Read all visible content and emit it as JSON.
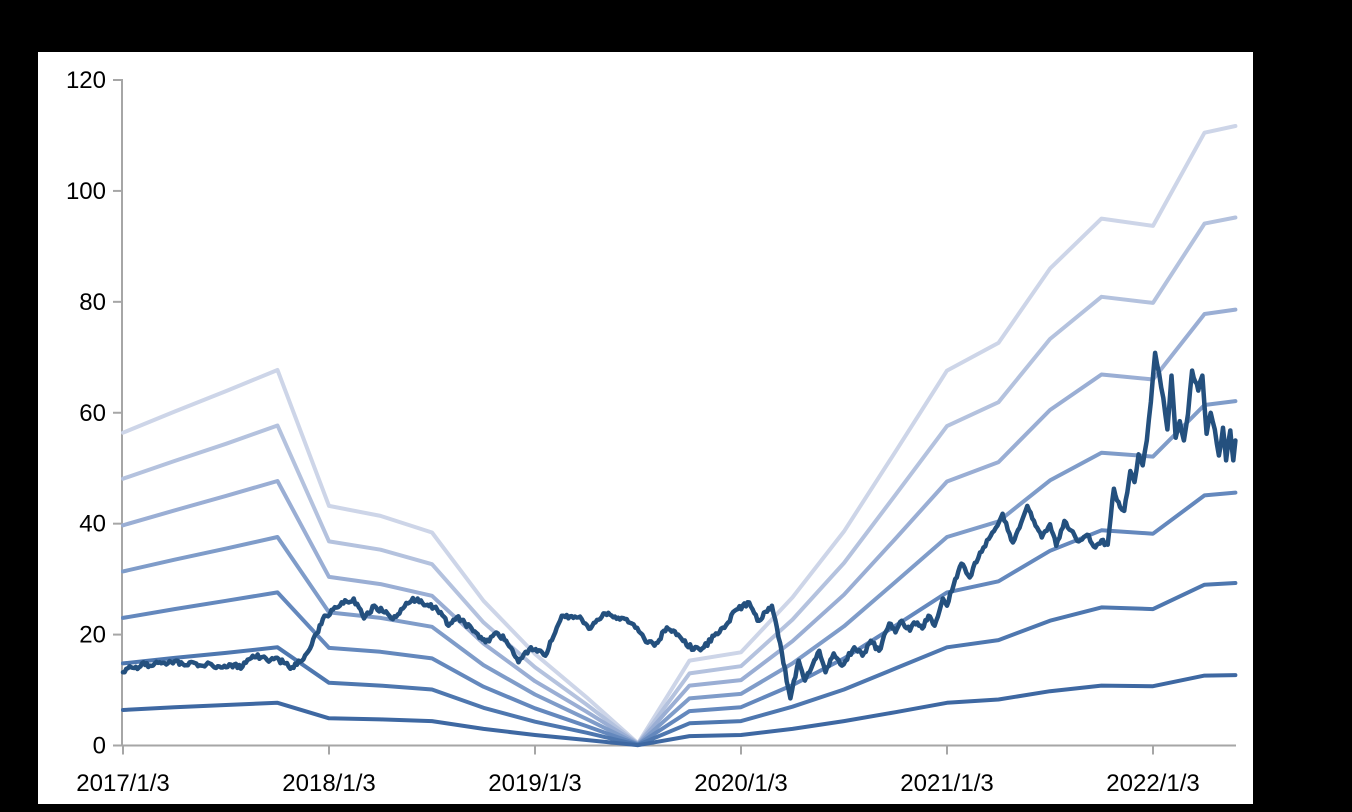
{
  "figure": {
    "background_color": "#000000",
    "panel_color": "#ffffff",
    "axis_color": "#a6a6a6",
    "label_color": "#000000"
  },
  "chart_data": {
    "type": "line",
    "title": "",
    "xlabel": "",
    "ylabel": "",
    "grid": false,
    "legend": "none",
    "x_axis": {
      "tick_labels": [
        "2017/1/3",
        "2018/1/3",
        "2019/1/3",
        "2020/1/3",
        "2021/1/3",
        "2022/1/3"
      ],
      "tick_values": [
        2017,
        2018,
        2019,
        2020,
        2021,
        2022
      ],
      "range": [
        2017,
        2022.42
      ]
    },
    "y_axis": {
      "tick_labels": [
        "0",
        "20",
        "40",
        "60",
        "80",
        "100",
        "120"
      ],
      "tick_values": [
        0,
        20,
        40,
        60,
        80,
        100,
        120
      ],
      "range": [
        0,
        120
      ]
    },
    "band_series": {
      "comment": "Seven smooth kinked lines, quarterly vertices, light-to-dark blue, converging to ~0 at 2019.5",
      "x": [
        2017.0,
        2017.25,
        2017.5,
        2017.75,
        2018.0,
        2018.25,
        2018.5,
        2018.75,
        2019.0,
        2019.25,
        2019.5,
        2019.75,
        2020.0,
        2020.25,
        2020.5,
        2020.75,
        2021.0,
        2021.25,
        2021.5,
        2021.75,
        2022.0,
        2022.25,
        2022.4
      ],
      "series": [
        {
          "name": "band-1",
          "color": "#cdd5e8",
          "values": [
            56.4,
            60.2,
            63.9,
            67.7,
            43.2,
            41.4,
            38.4,
            26.1,
            16.5,
            8.7,
            0.4,
            15.3,
            16.8,
            26.7,
            38.6,
            53.0,
            67.6,
            72.6,
            86.0,
            95.0,
            93.7,
            110.5,
            111.7
          ]
        },
        {
          "name": "band-2",
          "color": "#b4c2de",
          "values": [
            48.1,
            51.3,
            54.4,
            57.7,
            36.8,
            35.3,
            32.7,
            22.2,
            14.1,
            7.4,
            0.3,
            13.0,
            14.3,
            22.7,
            32.9,
            45.2,
            57.6,
            61.9,
            73.3,
            80.9,
            79.8,
            94.1,
            95.2
          ]
        },
        {
          "name": "band-3",
          "color": "#9aaed4",
          "values": [
            39.7,
            42.4,
            45.0,
            47.7,
            30.4,
            29.1,
            27.0,
            18.4,
            11.6,
            6.1,
            0.3,
            10.8,
            11.8,
            18.8,
            27.2,
            37.3,
            47.6,
            51.1,
            60.5,
            66.9,
            66.0,
            77.8,
            78.6
          ]
        },
        {
          "name": "band-4",
          "color": "#7f9cc9",
          "values": [
            31.4,
            33.5,
            35.5,
            37.6,
            24.0,
            23.0,
            21.4,
            14.5,
            9.2,
            4.8,
            0.2,
            8.5,
            9.3,
            14.8,
            21.5,
            29.5,
            37.6,
            40.4,
            47.8,
            52.8,
            52.1,
            61.4,
            62.1
          ]
        },
        {
          "name": "band-5",
          "color": "#6488bd",
          "values": [
            23.0,
            24.6,
            26.1,
            27.6,
            17.6,
            16.9,
            15.7,
            10.6,
            6.7,
            3.5,
            0.2,
            6.2,
            6.9,
            10.9,
            15.7,
            21.6,
            27.6,
            29.6,
            35.1,
            38.8,
            38.2,
            45.1,
            45.6
          ]
        },
        {
          "name": "band-6",
          "color": "#4e77af",
          "values": [
            14.8,
            15.8,
            16.7,
            17.7,
            11.3,
            10.8,
            10.1,
            6.8,
            4.3,
            2.3,
            0.1,
            4.0,
            4.4,
            7.0,
            10.1,
            13.9,
            17.7,
            19.0,
            22.5,
            24.9,
            24.6,
            29.0,
            29.3
          ]
        },
        {
          "name": "band-7",
          "color": "#3e68a2",
          "values": [
            6.4,
            6.9,
            7.3,
            7.7,
            4.9,
            4.7,
            4.4,
            3.0,
            1.9,
            1.0,
            0.05,
            1.7,
            1.9,
            3.0,
            4.4,
            6.0,
            7.7,
            8.3,
            9.8,
            10.8,
            10.7,
            12.6,
            12.7
          ]
        }
      ]
    },
    "price_series": {
      "name": "price-line",
      "color": "#24507e",
      "noise": {
        "amplitude": 0.45,
        "step": 0.008
      },
      "points": [
        [
          2017.0,
          13.2
        ],
        [
          2017.04,
          14.1
        ],
        [
          2017.07,
          13.8
        ],
        [
          2017.1,
          15.0
        ],
        [
          2017.13,
          14.4
        ],
        [
          2017.17,
          14.9
        ],
        [
          2017.21,
          14.6
        ],
        [
          2017.25,
          15.2
        ],
        [
          2017.29,
          14.7
        ],
        [
          2017.34,
          15.0
        ],
        [
          2017.38,
          14.4
        ],
        [
          2017.42,
          14.8
        ],
        [
          2017.46,
          14.3
        ],
        [
          2017.5,
          14.1
        ],
        [
          2017.54,
          14.6
        ],
        [
          2017.58,
          14.2
        ],
        [
          2017.63,
          16.2
        ],
        [
          2017.67,
          15.9
        ],
        [
          2017.7,
          15.4
        ],
        [
          2017.74,
          15.8
        ],
        [
          2017.78,
          14.9
        ],
        [
          2017.82,
          14.1
        ],
        [
          2017.86,
          15.1
        ],
        [
          2017.9,
          17.0
        ],
        [
          2017.94,
          20.2
        ],
        [
          2017.97,
          22.8
        ],
        [
          2018.02,
          24.5
        ],
        [
          2018.07,
          25.6
        ],
        [
          2018.12,
          26.5
        ],
        [
          2018.17,
          22.9
        ],
        [
          2018.22,
          25.2
        ],
        [
          2018.26,
          24.2
        ],
        [
          2018.31,
          22.8
        ],
        [
          2018.35,
          24.6
        ],
        [
          2018.4,
          26.1
        ],
        [
          2018.43,
          26.5
        ],
        [
          2018.47,
          25.3
        ],
        [
          2018.51,
          24.9
        ],
        [
          2018.55,
          23.5
        ],
        [
          2018.58,
          21.6
        ],
        [
          2018.62,
          23.1
        ],
        [
          2018.66,
          22.0
        ],
        [
          2018.7,
          20.6
        ],
        [
          2018.73,
          19.4
        ],
        [
          2018.76,
          18.6
        ],
        [
          2018.82,
          20.2
        ],
        [
          2018.86,
          18.9
        ],
        [
          2018.92,
          15.0
        ],
        [
          2018.98,
          17.7
        ],
        [
          2019.05,
          16.2
        ],
        [
          2019.13,
          23.4
        ],
        [
          2019.21,
          23.1
        ],
        [
          2019.27,
          21.1
        ],
        [
          2019.34,
          23.8
        ],
        [
          2019.42,
          23.0
        ],
        [
          2019.47,
          22.0
        ],
        [
          2019.53,
          19.3
        ],
        [
          2019.58,
          18.0
        ],
        [
          2019.64,
          21.3
        ],
        [
          2019.71,
          19.3
        ],
        [
          2019.77,
          17.3
        ],
        [
          2019.82,
          17.7
        ],
        [
          2019.87,
          19.8
        ],
        [
          2019.92,
          21.2
        ],
        [
          2019.97,
          24.3
        ],
        [
          2020.04,
          25.8
        ],
        [
          2020.08,
          22.5
        ],
        [
          2020.15,
          25.2
        ],
        [
          2020.19,
          18.5
        ],
        [
          2020.23,
          10.3
        ],
        [
          2020.24,
          8.5
        ],
        [
          2020.28,
          15.3
        ],
        [
          2020.31,
          11.7
        ],
        [
          2020.34,
          13.8
        ],
        [
          2020.38,
          17.1
        ],
        [
          2020.41,
          13.2
        ],
        [
          2020.45,
          16.6
        ],
        [
          2020.49,
          14.4
        ],
        [
          2020.55,
          17.7
        ],
        [
          2020.59,
          16.2
        ],
        [
          2020.63,
          18.9
        ],
        [
          2020.67,
          17.1
        ],
        [
          2020.72,
          22.0
        ],
        [
          2020.75,
          20.4
        ],
        [
          2020.78,
          22.5
        ],
        [
          2020.82,
          20.7
        ],
        [
          2020.84,
          22.2
        ],
        [
          2020.88,
          21.1
        ],
        [
          2020.91,
          23.4
        ],
        [
          2020.94,
          21.6
        ],
        [
          2020.98,
          26.5
        ],
        [
          2021.0,
          25.2
        ],
        [
          2021.04,
          30.0
        ],
        [
          2021.07,
          32.8
        ],
        [
          2021.11,
          30.3
        ],
        [
          2021.16,
          34.8
        ],
        [
          2021.22,
          38.4
        ],
        [
          2021.27,
          41.8
        ],
        [
          2021.32,
          36.6
        ],
        [
          2021.36,
          40.2
        ],
        [
          2021.39,
          43.2
        ],
        [
          2021.43,
          39.6
        ],
        [
          2021.46,
          37.5
        ],
        [
          2021.5,
          39.9
        ],
        [
          2021.53,
          36.0
        ],
        [
          2021.57,
          40.5
        ],
        [
          2021.61,
          38.6
        ],
        [
          2021.64,
          36.8
        ],
        [
          2021.68,
          38.0
        ],
        [
          2021.72,
          35.7
        ],
        [
          2021.75,
          37.0
        ],
        [
          2021.78,
          36.2
        ],
        [
          2021.81,
          46.3
        ],
        [
          2021.84,
          43.0
        ],
        [
          2021.86,
          42.3
        ],
        [
          2021.89,
          49.5
        ],
        [
          2021.91,
          47.5
        ],
        [
          2021.93,
          52.5
        ],
        [
          2021.95,
          50.5
        ],
        [
          2021.97,
          55.0
        ],
        [
          2021.99,
          62.0
        ],
        [
          2022.01,
          70.8
        ],
        [
          2022.03,
          67.0
        ],
        [
          2022.05,
          62.7
        ],
        [
          2022.07,
          57.0
        ],
        [
          2022.09,
          66.7
        ],
        [
          2022.11,
          55.5
        ],
        [
          2022.13,
          58.5
        ],
        [
          2022.15,
          55.0
        ],
        [
          2022.17,
          59.8
        ],
        [
          2022.19,
          67.6
        ],
        [
          2022.22,
          64.0
        ],
        [
          2022.24,
          66.7
        ],
        [
          2022.26,
          56.2
        ],
        [
          2022.28,
          60.0
        ],
        [
          2022.3,
          57.0
        ],
        [
          2022.32,
          52.3
        ],
        [
          2022.34,
          57.3
        ],
        [
          2022.355,
          51.4
        ],
        [
          2022.375,
          56.8
        ],
        [
          2022.39,
          51.4
        ],
        [
          2022.4,
          55.0
        ]
      ]
    }
  }
}
